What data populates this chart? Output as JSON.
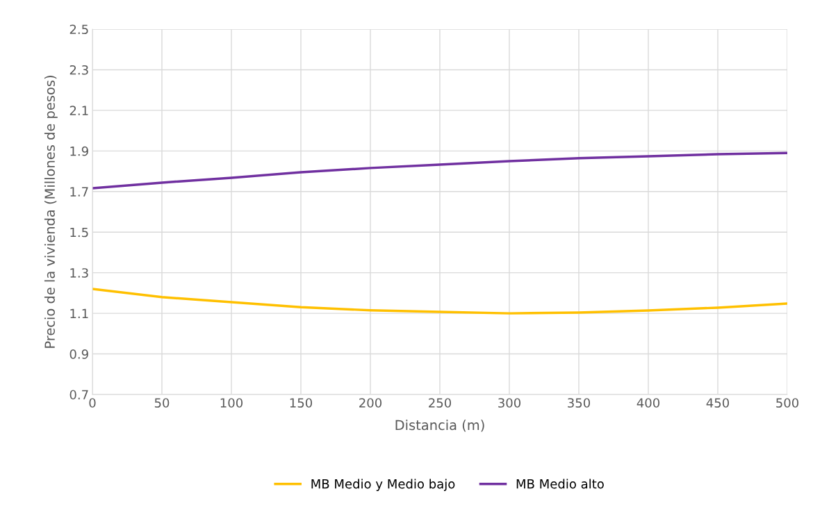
{
  "chart_data": {
    "type": "line",
    "xlabel": "Distancia (m)",
    "ylabel": "Precio de la vivienda (Millones de pesos)",
    "x": [
      0,
      50,
      100,
      150,
      200,
      250,
      300,
      350,
      400,
      450,
      500
    ],
    "series": [
      {
        "name": "MB Medio y Medio bajo",
        "color": "#ffc000",
        "values": [
          1.22,
          1.18,
          1.155,
          1.13,
          1.115,
          1.107,
          1.1,
          1.104,
          1.114,
          1.128,
          1.148
        ]
      },
      {
        "name": "MB Medio alto",
        "color": "#7030a0",
        "values": [
          1.716,
          1.744,
          1.768,
          1.795,
          1.816,
          1.833,
          1.85,
          1.864,
          1.874,
          1.884,
          1.89
        ]
      }
    ],
    "xlim": [
      0,
      500
    ],
    "xticks": [
      0,
      50,
      100,
      150,
      200,
      250,
      300,
      350,
      400,
      450,
      500
    ],
    "ylim": [
      0.7,
      2.5
    ],
    "yticks": [
      {
        "value": 0.7,
        "label": "0.7"
      },
      {
        "value": 0.9,
        "label": "0.9"
      },
      {
        "value": 1.1,
        "label": "1.1"
      },
      {
        "value": 1.3,
        "label": "1.3"
      },
      {
        "value": 1.5,
        "label": "1.5"
      },
      {
        "value": 1.7,
        "label": "1.7"
      },
      {
        "value": 1.9,
        "label": "1.9"
      },
      {
        "value": 2.1,
        "label": "2.1"
      },
      {
        "value": 2.3,
        "label": "2.3"
      },
      {
        "value": 2.5,
        "label": "2.5"
      }
    ],
    "grid": true,
    "legend": "bottom",
    "marker": "none",
    "line_style": "solid"
  }
}
